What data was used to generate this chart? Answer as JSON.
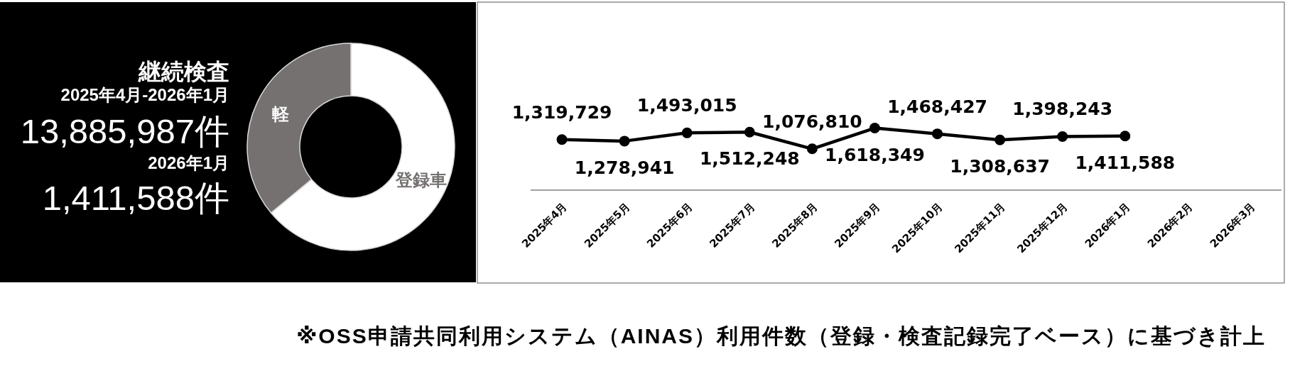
{
  "chart_data": [
    {
      "type": "donut",
      "title": "継続検査",
      "annotations": [
        "2025年4月-2026年1月",
        "13,885,987件",
        "2026年1月",
        "1,411,588件"
      ],
      "categories": [
        "登録車",
        "軽"
      ],
      "values": [
        64,
        36
      ],
      "colors": [
        "#ffffff",
        "#767171"
      ]
    },
    {
      "type": "line",
      "categories": [
        "2025年4月",
        "2025年5月",
        "2025年6月",
        "2025年7月",
        "2025年8月",
        "2025年9月",
        "2025年10月",
        "2025年11月",
        "2025年12月",
        "2026年1月",
        "2026年2月",
        "2026年3月"
      ],
      "values": [
        1319729,
        1278941,
        1493015,
        1512248,
        1076810,
        1618349,
        1468427,
        1308637,
        1398243,
        1411588,
        null,
        null
      ],
      "value_labels": [
        "1,319,729",
        "1,278,941",
        "1,493,015",
        "1,512,248",
        "1,076,810",
        "1,618,349",
        "1,468,427",
        "1,308,637",
        "1,398,243",
        "1,411,588",
        null,
        null
      ],
      "color": "#000000",
      "marker": "circle",
      "line_style": "solid",
      "annotations": [
        "※OSS申請共同利用システム（AINAS）利用件数（登録・検査記録完了ベース）に基づき計上"
      ]
    }
  ]
}
